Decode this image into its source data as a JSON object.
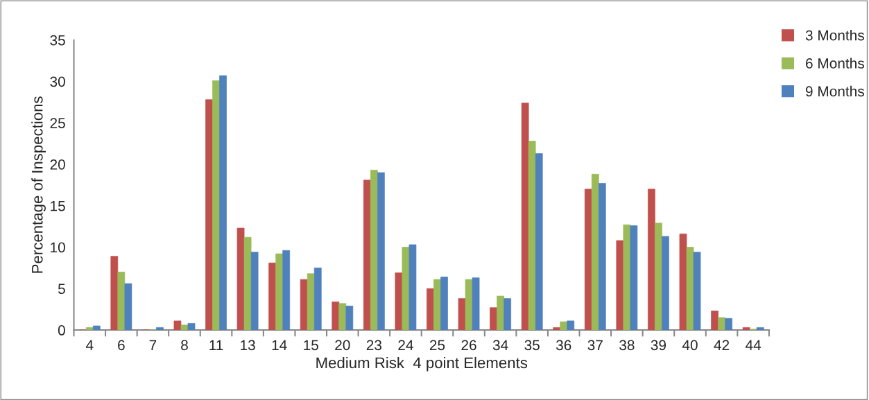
{
  "chart_data": {
    "type": "bar",
    "xlabel": "Medium Risk  4 point Elements",
    "ylabel": "Percentage of Inspections",
    "categories": [
      "4",
      "6",
      "7",
      "8",
      "11",
      "13",
      "14",
      "15",
      "20",
      "23",
      "24",
      "25",
      "26",
      "34",
      "35",
      "36",
      "37",
      "38",
      "39",
      "40",
      "42",
      "44"
    ],
    "series": [
      {
        "name": "3 Months",
        "color": "#c0504d",
        "values": [
          0,
          8.9,
          0,
          1.1,
          27.8,
          12.3,
          8.1,
          6.1,
          3.4,
          18.1,
          6.9,
          5.0,
          3.8,
          2.7,
          27.4,
          0.3,
          17.0,
          10.8,
          17.0,
          11.6,
          2.3,
          0.3
        ]
      },
      {
        "name": "6 Months",
        "color": "#9bbb59",
        "values": [
          0.3,
          7.0,
          0,
          0.6,
          30.1,
          11.2,
          9.2,
          6.8,
          3.2,
          19.3,
          10.0,
          6.1,
          6.1,
          4.1,
          22.8,
          1.0,
          18.8,
          12.7,
          12.9,
          10.0,
          1.5,
          0.1
        ]
      },
      {
        "name": "9 Months",
        "color": "#4f81bd",
        "values": [
          0.5,
          5.6,
          0.3,
          0.8,
          30.7,
          9.4,
          9.6,
          7.5,
          2.9,
          19.0,
          10.3,
          6.4,
          6.3,
          3.8,
          21.3,
          1.1,
          17.7,
          12.6,
          11.3,
          9.4,
          1.4,
          0.3
        ]
      }
    ],
    "ylim": [
      0,
      35
    ],
    "yticks": [
      0,
      5,
      10,
      15,
      20,
      25,
      30,
      35
    ],
    "grid": false,
    "legend": "top right"
  }
}
